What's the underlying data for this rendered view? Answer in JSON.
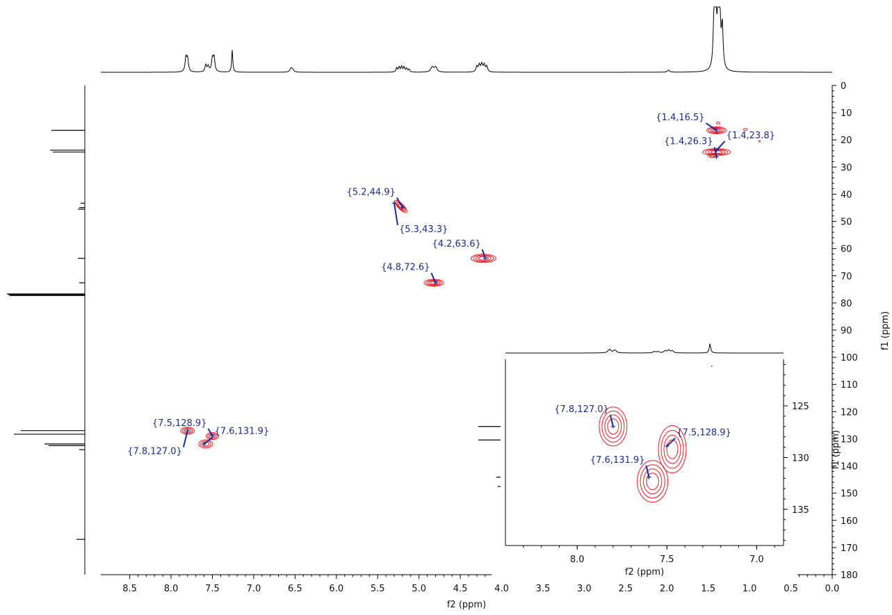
{
  "chart_data": {
    "type": "hsqc-2d-contour",
    "main": {
      "xlabel": "f2 (ppm)",
      "ylabel": "f1 (ppm)",
      "xlim": [
        8.85,
        0.0
      ],
      "ylim": [
        0,
        180
      ],
      "x_ticks": [
        "8.5",
        "8.0",
        "7.5",
        "7.0",
        "6.5",
        "6.0",
        "5.5",
        "5.0",
        "4.5",
        "4.0",
        "3.5",
        "3.0",
        "2.5",
        "2.0",
        "1.5",
        "1.0",
        "0.5",
        "0.0"
      ],
      "y_ticks": [
        "0",
        "10",
        "20",
        "30",
        "40",
        "50",
        "60",
        "70",
        "80",
        "90",
        "100",
        "110",
        "120",
        "130",
        "140",
        "150",
        "160",
        "170",
        "180"
      ],
      "peaks": [
        {
          "label": "{1.4,16.5}",
          "x": 1.4,
          "y": 16.5
        },
        {
          "label": "{1.4,23.8}",
          "x": 1.4,
          "y": 23.8
        },
        {
          "label": "{1.4,26.3}",
          "x": 1.4,
          "y": 26.3
        },
        {
          "label": "{5.2,44.9}",
          "x": 5.2,
          "y": 44.9
        },
        {
          "label": "{5.3,43.3}",
          "x": 5.3,
          "y": 43.3
        },
        {
          "label": "{4.2,63.6}",
          "x": 4.2,
          "y": 63.6
        },
        {
          "label": "{4.8,72.6}",
          "x": 4.8,
          "y": 72.6
        },
        {
          "label": "{7.5,128.9}",
          "x": 7.5,
          "y": 128.9
        },
        {
          "label": "{7.6,131.9}",
          "x": 7.6,
          "y": 131.9
        },
        {
          "label": "{7.8,127.0}",
          "x": 7.8,
          "y": 127.0
        }
      ],
      "h1_projection_peaks_ppm": [
        7.82,
        7.8,
        7.58,
        7.55,
        7.5,
        7.48,
        7.26,
        6.55,
        5.25,
        5.2,
        5.15,
        4.82,
        4.28,
        4.24,
        4.2,
        1.98,
        1.42,
        1.4,
        1.38,
        1.36
      ],
      "c13_projection_peaks_ppm": [
        16.5,
        23.8,
        24.5,
        43.3,
        44.9,
        45.5,
        63.6,
        72.6,
        77.0,
        127.0,
        128.3,
        131.9,
        132.5,
        167.0
      ]
    },
    "inset": {
      "xlabel": "f2 (ppm)",
      "ylabel": "f1 (ppm)",
      "xlim": [
        8.4,
        6.85
      ],
      "ylim": [
        120.5,
        138.5
      ],
      "x_ticks": [
        "8.0",
        "7.5",
        "7.0"
      ],
      "y_ticks": [
        "125",
        "130",
        "135"
      ],
      "peaks": [
        {
          "label": "{7.8,127.0}",
          "x": 7.8,
          "y": 127.0
        },
        {
          "label": "{7.5,128.9}",
          "x": 7.5,
          "y": 128.9
        },
        {
          "label": "{7.6,131.9}",
          "x": 7.6,
          "y": 131.9
        }
      ]
    },
    "colors": {
      "contour": "#e8202a",
      "label": "#1c2b8f",
      "axis": "#000000"
    }
  }
}
